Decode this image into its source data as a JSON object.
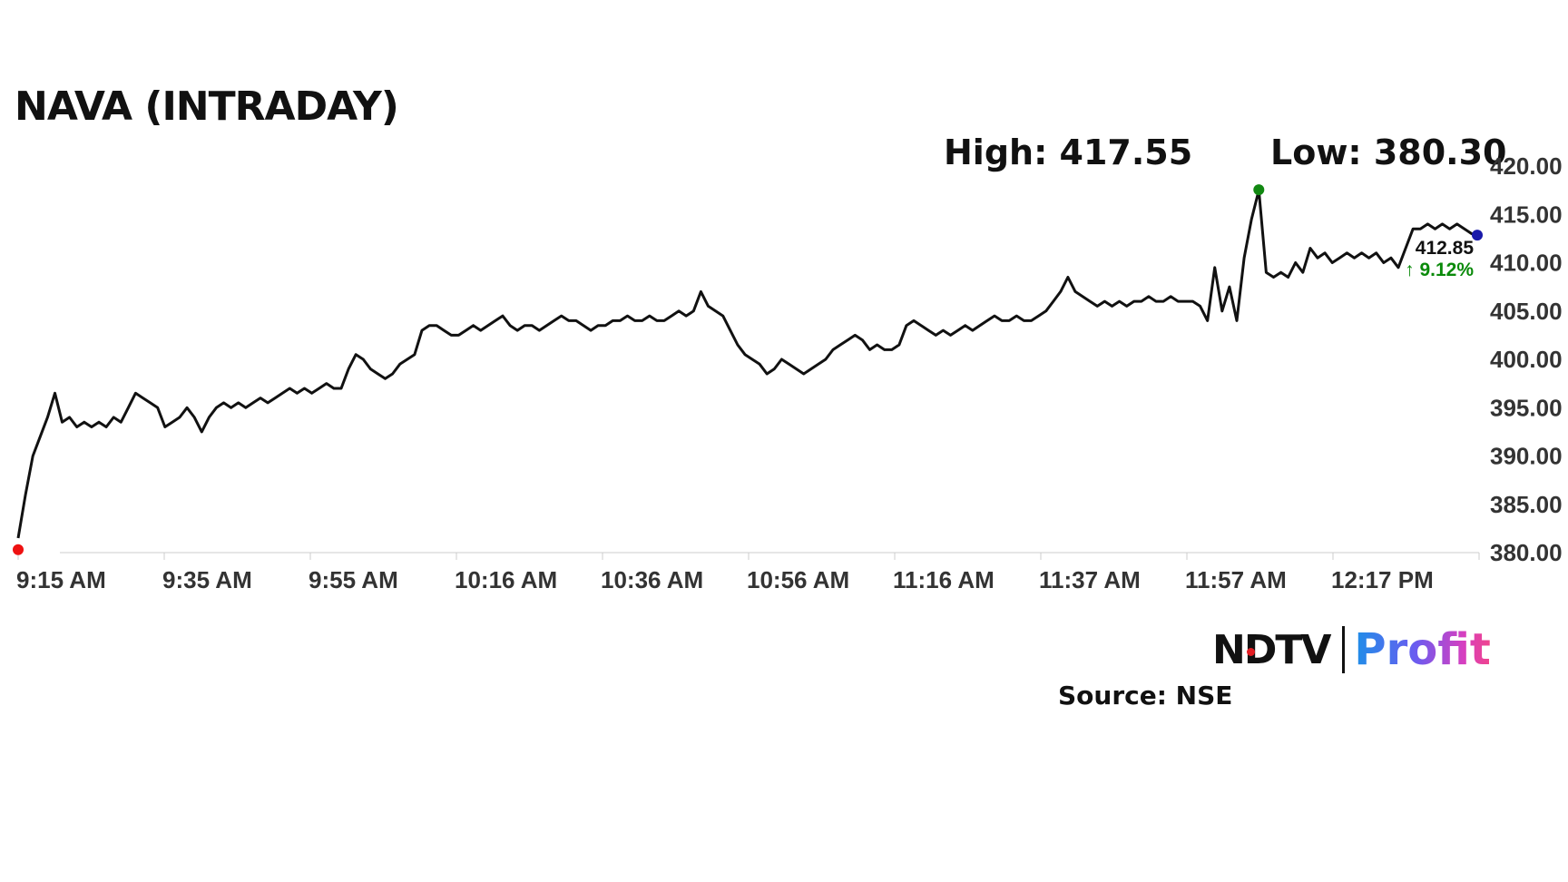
{
  "header": {
    "title": "NAVA (INTRADAY)",
    "high_label": "High: 417.55",
    "low_label": "Low: 380.30"
  },
  "last": {
    "price": "412.85",
    "change": "↑ 9.12%"
  },
  "footer": {
    "brand_main": "NDTV",
    "brand_profit": "Profit",
    "source": "Source: NSE"
  },
  "colors": {
    "line": "#111111",
    "high_marker": "#118811",
    "low_marker": "#ee1111",
    "last_marker": "#1a1aaa",
    "change_up": "#0a8a0a"
  },
  "chart_data": {
    "type": "line",
    "title": "NAVA (INTRADAY)",
    "xlabel": "",
    "ylabel": "",
    "ylim": [
      380,
      420
    ],
    "y_ticks": [
      "420.00",
      "415.00",
      "410.00",
      "405.00",
      "400.00",
      "395.00",
      "390.00",
      "385.00",
      "380.00"
    ],
    "x_ticks": [
      "9:15 AM",
      "9:35 AM",
      "9:55 AM",
      "10:16 AM",
      "10:36 AM",
      "10:56 AM",
      "11:16 AM",
      "11:37 AM",
      "11:57 AM",
      "12:17 PM"
    ],
    "grid": false,
    "high": 417.55,
    "low": 380.3,
    "last": 412.85,
    "change_pct": 9.12,
    "series": [
      {
        "values": [
          [
            0,
            381.5
          ],
          [
            1,
            386
          ],
          [
            2,
            390
          ],
          [
            3,
            392
          ],
          [
            4,
            394
          ],
          [
            5,
            396.5
          ],
          [
            6,
            393.5
          ],
          [
            7,
            394
          ],
          [
            8,
            393
          ],
          [
            9,
            393.5
          ],
          [
            10,
            393
          ],
          [
            11,
            393.5
          ],
          [
            12,
            393
          ],
          [
            13,
            394
          ],
          [
            14,
            393.5
          ],
          [
            15,
            395
          ],
          [
            16,
            396.5
          ],
          [
            17,
            396
          ],
          [
            18,
            395.5
          ],
          [
            19,
            395
          ],
          [
            20,
            393
          ],
          [
            21,
            393.5
          ],
          [
            22,
            394
          ],
          [
            23,
            395
          ],
          [
            24,
            394
          ],
          [
            25,
            392.5
          ],
          [
            26,
            394
          ],
          [
            27,
            395
          ],
          [
            28,
            395.5
          ],
          [
            29,
            395
          ],
          [
            30,
            395.5
          ],
          [
            31,
            395
          ],
          [
            32,
            395.5
          ],
          [
            33,
            396
          ],
          [
            34,
            395.5
          ],
          [
            35,
            396
          ],
          [
            36,
            396.5
          ],
          [
            37,
            397
          ],
          [
            38,
            396.5
          ],
          [
            39,
            397
          ],
          [
            40,
            396.5
          ],
          [
            41,
            397
          ],
          [
            42,
            397.5
          ],
          [
            43,
            397
          ],
          [
            44,
            397
          ],
          [
            45,
            399
          ],
          [
            46,
            400.5
          ],
          [
            47,
            400
          ],
          [
            48,
            399
          ],
          [
            49,
            398.5
          ],
          [
            50,
            398
          ],
          [
            51,
            398.5
          ],
          [
            52,
            399.5
          ],
          [
            53,
            400
          ],
          [
            54,
            400.5
          ],
          [
            55,
            403
          ],
          [
            56,
            403.5
          ],
          [
            57,
            403.5
          ],
          [
            58,
            403
          ],
          [
            59,
            402.5
          ],
          [
            60,
            402.5
          ],
          [
            61,
            403
          ],
          [
            62,
            403.5
          ],
          [
            63,
            403
          ],
          [
            64,
            403.5
          ],
          [
            65,
            404
          ],
          [
            66,
            404.5
          ],
          [
            67,
            403.5
          ],
          [
            68,
            403
          ],
          [
            69,
            403.5
          ],
          [
            70,
            403.5
          ],
          [
            71,
            403
          ],
          [
            72,
            403.5
          ],
          [
            73,
            404
          ],
          [
            74,
            404.5
          ],
          [
            75,
            404
          ],
          [
            76,
            404
          ],
          [
            77,
            403.5
          ],
          [
            78,
            403
          ],
          [
            79,
            403.5
          ],
          [
            80,
            403.5
          ],
          [
            81,
            404
          ],
          [
            82,
            404
          ],
          [
            83,
            404.5
          ],
          [
            84,
            404
          ],
          [
            85,
            404
          ],
          [
            86,
            404.5
          ],
          [
            87,
            404
          ],
          [
            88,
            404
          ],
          [
            89,
            404.5
          ],
          [
            90,
            405
          ],
          [
            91,
            404.5
          ],
          [
            92,
            405
          ],
          [
            93,
            407
          ],
          [
            94,
            405.5
          ],
          [
            95,
            405
          ],
          [
            96,
            404.5
          ],
          [
            97,
            403
          ],
          [
            98,
            401.5
          ],
          [
            99,
            400.5
          ],
          [
            100,
            400
          ],
          [
            101,
            399.5
          ],
          [
            102,
            398.5
          ],
          [
            103,
            399
          ],
          [
            104,
            400
          ],
          [
            105,
            399.5
          ],
          [
            106,
            399
          ],
          [
            107,
            398.5
          ],
          [
            108,
            399
          ],
          [
            109,
            399.5
          ],
          [
            110,
            400
          ],
          [
            111,
            401
          ],
          [
            112,
            401.5
          ],
          [
            113,
            402
          ],
          [
            114,
            402.5
          ],
          [
            115,
            402
          ],
          [
            116,
            401
          ],
          [
            117,
            401.5
          ],
          [
            118,
            401
          ],
          [
            119,
            401
          ],
          [
            120,
            401.5
          ],
          [
            121,
            403.5
          ],
          [
            122,
            404
          ],
          [
            123,
            403.5
          ],
          [
            124,
            403
          ],
          [
            125,
            402.5
          ],
          [
            126,
            403
          ],
          [
            127,
            402.5
          ],
          [
            128,
            403
          ],
          [
            129,
            403.5
          ],
          [
            130,
            403
          ],
          [
            131,
            403.5
          ],
          [
            132,
            404
          ],
          [
            133,
            404.5
          ],
          [
            134,
            404
          ],
          [
            135,
            404
          ],
          [
            136,
            404.5
          ],
          [
            137,
            404
          ],
          [
            138,
            404
          ],
          [
            139,
            404.5
          ],
          [
            140,
            405
          ],
          [
            141,
            406
          ],
          [
            142,
            407
          ],
          [
            143,
            408.5
          ],
          [
            144,
            407
          ],
          [
            145,
            406.5
          ],
          [
            146,
            406
          ],
          [
            147,
            405.5
          ],
          [
            148,
            406
          ],
          [
            149,
            405.5
          ],
          [
            150,
            406
          ],
          [
            151,
            405.5
          ],
          [
            152,
            406
          ],
          [
            153,
            406
          ],
          [
            154,
            406.5
          ],
          [
            155,
            406
          ],
          [
            156,
            406
          ],
          [
            157,
            406.5
          ],
          [
            158,
            406
          ],
          [
            159,
            406
          ],
          [
            160,
            406
          ],
          [
            161,
            405.5
          ],
          [
            162,
            404
          ],
          [
            163,
            409.5
          ],
          [
            164,
            405
          ],
          [
            165,
            407.5
          ],
          [
            166,
            404
          ],
          [
            167,
            410.5
          ],
          [
            168,
            414.5
          ],
          [
            169,
            417.5
          ],
          [
            170,
            409
          ],
          [
            171,
            408.5
          ],
          [
            172,
            409
          ],
          [
            173,
            408.5
          ],
          [
            174,
            410
          ],
          [
            175,
            409
          ],
          [
            176,
            411.5
          ],
          [
            177,
            410.5
          ],
          [
            178,
            411
          ],
          [
            179,
            410
          ],
          [
            180,
            410.5
          ],
          [
            181,
            411
          ],
          [
            182,
            410.5
          ],
          [
            183,
            411
          ],
          [
            184,
            410.5
          ],
          [
            185,
            411
          ],
          [
            186,
            410
          ],
          [
            187,
            410.5
          ],
          [
            188,
            409.5
          ],
          [
            189,
            411.5
          ],
          [
            190,
            413.5
          ],
          [
            191,
            413.5
          ],
          [
            192,
            414
          ],
          [
            193,
            413.5
          ],
          [
            194,
            414
          ],
          [
            195,
            413.5
          ],
          [
            196,
            414
          ],
          [
            197,
            413.5
          ],
          [
            198,
            413
          ],
          [
            199,
            412.85
          ]
        ]
      }
    ]
  }
}
